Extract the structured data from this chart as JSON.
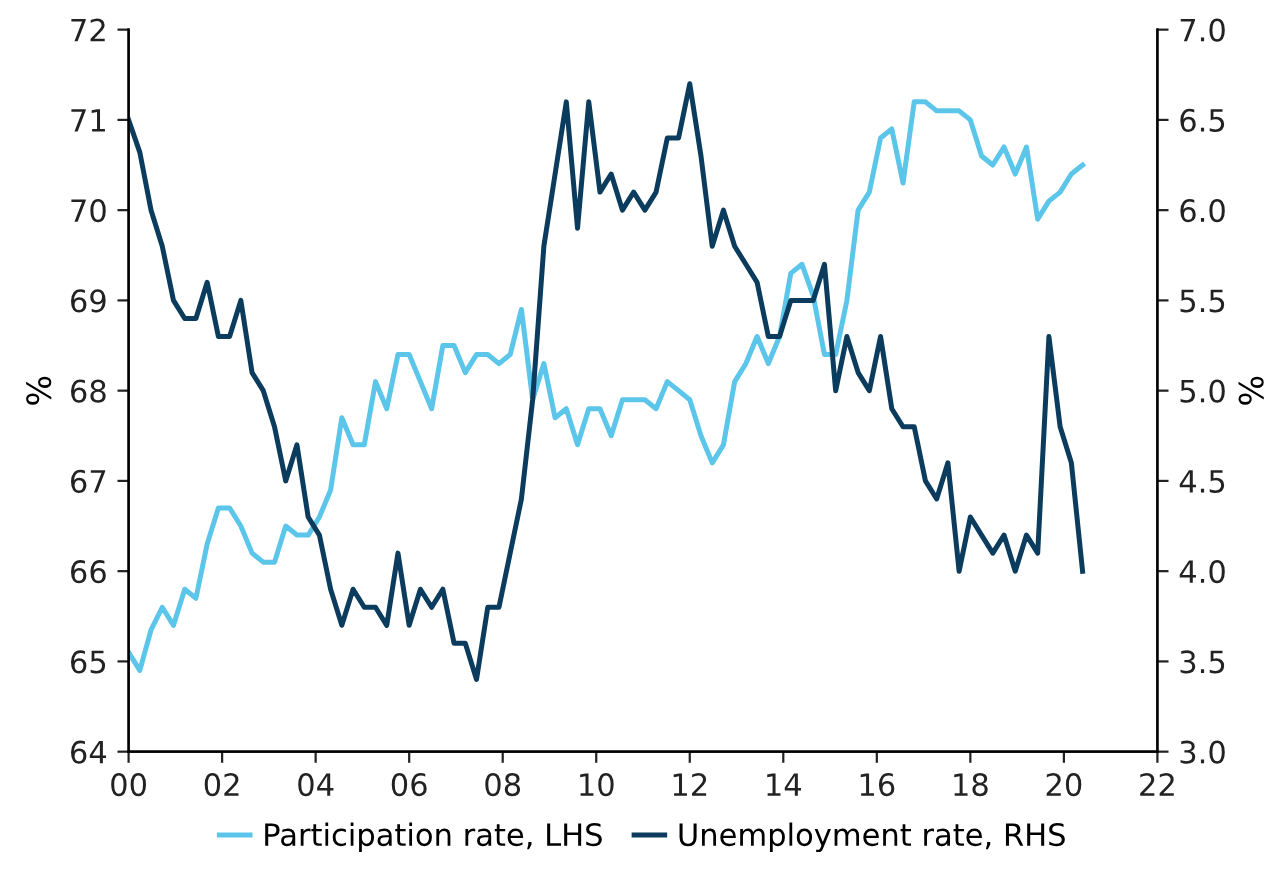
{
  "chart_data": {
    "type": "line",
    "xlabel": null,
    "ylabel": "%",
    "y2label": "%",
    "x": [
      0,
      0.24,
      0.48,
      0.72,
      0.96,
      1.2,
      1.44,
      1.68,
      1.92,
      2.16,
      2.4,
      2.64,
      2.88,
      3.12,
      3.36,
      3.6,
      3.84,
      4.08,
      4.32,
      4.56,
      4.8,
      5.04,
      5.28,
      5.52,
      5.76,
      6,
      6.24,
      6.48,
      6.72,
      6.96,
      7.2,
      7.44,
      7.68,
      7.92,
      8.16,
      8.4,
      8.64,
      8.88,
      9.12,
      9.36,
      9.6,
      9.84,
      10.08,
      10.32,
      10.56,
      10.8,
      11.04,
      11.28,
      11.52,
      11.76,
      12,
      12.24,
      12.48,
      12.72,
      12.96,
      13.2,
      13.44,
      13.68,
      13.92,
      14.16,
      14.4,
      14.64,
      14.88,
      15.12,
      15.36,
      15.6,
      15.84,
      16.08,
      16.32,
      16.56,
      16.8,
      17.04,
      17.28,
      17.52,
      17.76,
      18,
      18.24,
      18.48,
      18.72,
      18.96,
      19.2,
      19.44,
      19.68,
      19.92,
      20.16,
      20.4
    ],
    "series": [
      {
        "name": "Participation rate, LHS",
        "color": "#5bc5ea",
        "values": [
          65.1,
          64.9,
          65.35,
          65.6,
          65.4,
          65.8,
          65.7,
          66.3,
          66.7,
          66.7,
          66.5,
          66.2,
          66.1,
          66.1,
          66.5,
          66.4,
          66.4,
          66.6,
          66.9,
          67.7,
          67.4,
          67.4,
          68.1,
          67.8,
          68.4,
          68.4,
          68.1,
          67.8,
          68.5,
          68.5,
          68.2,
          68.4,
          68.4,
          68.3,
          68.4,
          68.9,
          67.9,
          68.3,
          67.7,
          67.8,
          67.4,
          67.8,
          67.8,
          67.5,
          67.9,
          67.9,
          67.9,
          67.8,
          68.1,
          68.0,
          67.9,
          67.5,
          67.2,
          67.4,
          68.1,
          68.3,
          68.6,
          68.3,
          68.6,
          69.3,
          69.4,
          69.05,
          68.4,
          68.4,
          69.0,
          70.0,
          70.2,
          70.8,
          70.9,
          70.3,
          71.2,
          71.2,
          71.1,
          71.1,
          71.1,
          71.0,
          70.6,
          70.5,
          70.7,
          70.4,
          70.7,
          69.9,
          70.1,
          70.2,
          70.4,
          70.5
        ]
      },
      {
        "name": "Unemployment rate, RHS",
        "color": "#0b3c5d",
        "axis": "y2",
        "values": [
          6.5,
          6.32,
          6.0,
          5.8,
          5.5,
          5.4,
          5.4,
          5.6,
          5.3,
          5.3,
          5.5,
          5.1,
          5.0,
          4.8,
          4.5,
          4.7,
          4.3,
          4.2,
          3.9,
          3.7,
          3.9,
          3.8,
          3.8,
          3.7,
          4.1,
          3.7,
          3.9,
          3.8,
          3.9,
          3.6,
          3.6,
          3.4,
          3.8,
          3.8,
          4.1,
          4.4,
          4.95,
          5.8,
          6.2,
          6.6,
          5.9,
          6.6,
          6.1,
          6.2,
          6.0,
          6.1,
          6.0,
          6.1,
          6.4,
          6.4,
          6.7,
          6.3,
          5.8,
          6.0,
          5.8,
          5.7,
          5.6,
          5.3,
          5.3,
          5.5,
          5.5,
          5.5,
          5.7,
          5.0,
          5.3,
          5.1,
          5.0,
          5.3,
          4.9,
          4.8,
          4.8,
          4.5,
          4.4,
          4.6,
          4.0,
          4.3,
          4.2,
          4.1,
          4.2,
          4.0,
          4.2,
          4.1,
          5.3,
          4.8,
          4.6,
          4.0
        ]
      }
    ],
    "xlim": [
      0,
      22
    ],
    "xticks": [
      {
        "value": 0,
        "label": "00"
      },
      {
        "value": 2,
        "label": "02"
      },
      {
        "value": 4,
        "label": "04"
      },
      {
        "value": 6,
        "label": "06"
      },
      {
        "value": 8,
        "label": "08"
      },
      10,
      12,
      14,
      16,
      18,
      20,
      22
    ],
    "ylim": [
      64,
      72
    ],
    "yticks": [
      64,
      65,
      66,
      67,
      68,
      69,
      70,
      71,
      72
    ],
    "y2lim": [
      3.0,
      7.0
    ],
    "y2ticks": [
      {
        "value": 3,
        "label": "3.0"
      },
      {
        "value": 3.5,
        "label": "3.5"
      },
      {
        "value": 4,
        "label": "4.0"
      },
      {
        "value": 4.5,
        "label": "4.5"
      },
      {
        "value": 5,
        "label": "5.0"
      },
      {
        "value": 5.5,
        "label": "5.5"
      },
      {
        "value": 6,
        "label": "6.0"
      },
      {
        "value": 6.5,
        "label": "6.5"
      },
      {
        "value": 7,
        "label": "7.0"
      }
    ],
    "legend": "bottom",
    "grid": false,
    "marker": "none",
    "line_style": "solid"
  }
}
